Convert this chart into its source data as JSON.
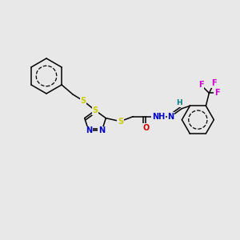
{
  "bg_color": "#e8e8e8",
  "atom_colors": {
    "S": "#cccc00",
    "N": "#0000cc",
    "O": "#cc0000",
    "F": "#cc00cc",
    "C": "#000000",
    "H": "#008080"
  },
  "bond_color": "#000000",
  "font_size_atoms": 7.0,
  "figsize": [
    3.0,
    3.0
  ],
  "dpi": 100
}
